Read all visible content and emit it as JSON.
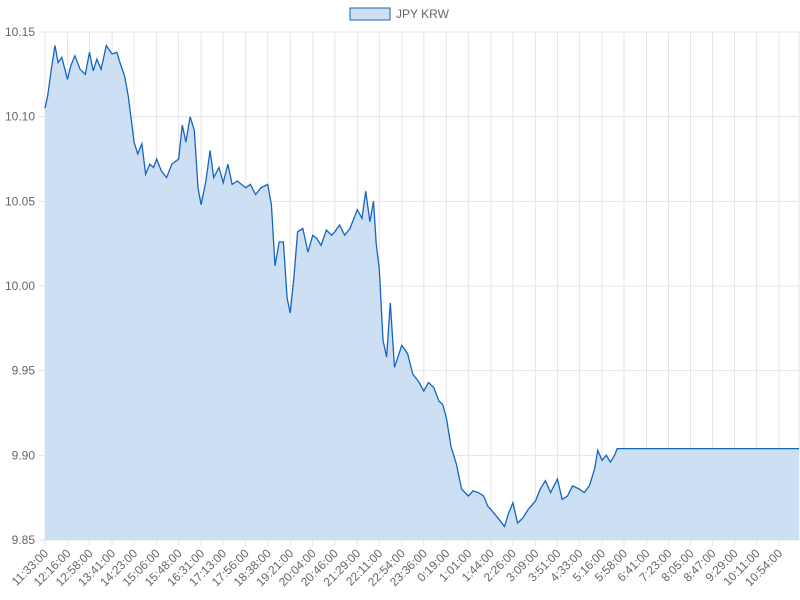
{
  "chart_data": {
    "type": "area",
    "legend": {
      "position": "top",
      "entries": [
        "JPY KRW"
      ]
    },
    "series": [
      {
        "name": "JPY KRW",
        "line_color": "#1565c0",
        "fill_color": "#cde0f3",
        "points": [
          [
            "11:33:00",
            10.105
          ],
          [
            "11:38:00",
            10.112
          ],
          [
            "11:45:00",
            10.128
          ],
          [
            "11:52:00",
            10.142
          ],
          [
            "11:58:00",
            10.132
          ],
          [
            "12:05:00",
            10.135
          ],
          [
            "12:16:00",
            10.122
          ],
          [
            "12:22:00",
            10.13
          ],
          [
            "12:30:00",
            10.136
          ],
          [
            "12:40:00",
            10.128
          ],
          [
            "12:50:00",
            10.125
          ],
          [
            "12:58:00",
            10.138
          ],
          [
            "13:05:00",
            10.127
          ],
          [
            "13:12:00",
            10.134
          ],
          [
            "13:20:00",
            10.128
          ],
          [
            "13:30:00",
            10.142
          ],
          [
            "13:41:00",
            10.137
          ],
          [
            "13:50:00",
            10.138
          ],
          [
            "13:58:00",
            10.13
          ],
          [
            "14:05:00",
            10.124
          ],
          [
            "14:12:00",
            10.112
          ],
          [
            "14:23:00",
            10.085
          ],
          [
            "14:30:00",
            10.078
          ],
          [
            "14:38:00",
            10.084
          ],
          [
            "14:45:00",
            10.066
          ],
          [
            "14:53:00",
            10.072
          ],
          [
            "15:00:00",
            10.07
          ],
          [
            "15:06:00",
            10.075
          ],
          [
            "15:15:00",
            10.068
          ],
          [
            "15:25:00",
            10.064
          ],
          [
            "15:35:00",
            10.072
          ],
          [
            "15:48:00",
            10.075
          ],
          [
            "15:55:00",
            10.095
          ],
          [
            "16:02:00",
            10.085
          ],
          [
            "16:10:00",
            10.1
          ],
          [
            "16:18:00",
            10.092
          ],
          [
            "16:25:00",
            10.058
          ],
          [
            "16:31:00",
            10.048
          ],
          [
            "16:40:00",
            10.062
          ],
          [
            "16:48:00",
            10.08
          ],
          [
            "16:55:00",
            10.064
          ],
          [
            "17:05:00",
            10.07
          ],
          [
            "17:13:00",
            10.061
          ],
          [
            "17:22:00",
            10.072
          ],
          [
            "17:30:00",
            10.06
          ],
          [
            "17:40:00",
            10.062
          ],
          [
            "17:56:00",
            10.058
          ],
          [
            "18:05:00",
            10.06
          ],
          [
            "18:15:00",
            10.054
          ],
          [
            "18:25:00",
            10.058
          ],
          [
            "18:38:00",
            10.06
          ],
          [
            "18:45:00",
            10.048
          ],
          [
            "18:52:00",
            10.012
          ],
          [
            "19:00:00",
            10.026
          ],
          [
            "19:08:00",
            10.026
          ],
          [
            "19:15:00",
            9.993
          ],
          [
            "19:21:00",
            9.984
          ],
          [
            "19:28:00",
            10.005
          ],
          [
            "19:35:00",
            10.032
          ],
          [
            "19:45:00",
            10.034
          ],
          [
            "19:55:00",
            10.02
          ],
          [
            "20:04:00",
            10.03
          ],
          [
            "20:12:00",
            10.028
          ],
          [
            "20:20:00",
            10.024
          ],
          [
            "20:30:00",
            10.033
          ],
          [
            "20:40:00",
            10.03
          ],
          [
            "20:46:00",
            10.032
          ],
          [
            "20:55:00",
            10.036
          ],
          [
            "21:05:00",
            10.03
          ],
          [
            "21:15:00",
            10.034
          ],
          [
            "21:29:00",
            10.045
          ],
          [
            "21:38:00",
            10.04
          ],
          [
            "21:45:00",
            10.056
          ],
          [
            "21:53:00",
            10.038
          ],
          [
            "22:00:00",
            10.05
          ],
          [
            "22:05:00",
            10.025
          ],
          [
            "22:11:00",
            10.01
          ],
          [
            "22:18:00",
            9.968
          ],
          [
            "22:25:00",
            9.958
          ],
          [
            "22:32:00",
            9.99
          ],
          [
            "22:40:00",
            9.952
          ],
          [
            "22:54:00",
            9.965
          ],
          [
            "23:05:00",
            9.96
          ],
          [
            "23:15:00",
            9.948
          ],
          [
            "23:25:00",
            9.944
          ],
          [
            "23:36:00",
            9.938
          ],
          [
            "23:45:00",
            9.943
          ],
          [
            "23:55:00",
            9.94
          ],
          [
            "0:05:00",
            9.932
          ],
          [
            "0:12:00",
            9.93
          ],
          [
            "0:19:00",
            9.922
          ],
          [
            "0:28:00",
            9.905
          ],
          [
            "0:38:00",
            9.895
          ],
          [
            "0:48:00",
            9.88
          ],
          [
            "1:01:00",
            9.876
          ],
          [
            "1:10:00",
            9.879
          ],
          [
            "1:20:00",
            9.878
          ],
          [
            "1:30:00",
            9.876
          ],
          [
            "1:38:00",
            9.87
          ],
          [
            "1:44:00",
            9.868
          ],
          [
            "1:52:00",
            9.865
          ],
          [
            "2:00:00",
            9.862
          ],
          [
            "2:10:00",
            9.858
          ],
          [
            "2:18:00",
            9.866
          ],
          [
            "2:26:00",
            9.872
          ],
          [
            "2:35:00",
            9.86
          ],
          [
            "2:45:00",
            9.863
          ],
          [
            "2:55:00",
            9.868
          ],
          [
            "3:09:00",
            9.873
          ],
          [
            "3:18:00",
            9.88
          ],
          [
            "3:28:00",
            9.885
          ],
          [
            "3:38:00",
            9.878
          ],
          [
            "3:51:00",
            9.886
          ],
          [
            "4:00:00",
            9.874
          ],
          [
            "4:10:00",
            9.876
          ],
          [
            "4:20:00",
            9.882
          ],
          [
            "4:33:00",
            9.88
          ],
          [
            "4:42:00",
            9.878
          ],
          [
            "4:52:00",
            9.882
          ],
          [
            "5:02:00",
            9.892
          ],
          [
            "5:08:00",
            9.903
          ],
          [
            "5:16:00",
            9.897
          ],
          [
            "5:24:00",
            9.9
          ],
          [
            "5:32:00",
            9.896
          ],
          [
            "5:40:00",
            9.9
          ],
          [
            "5:45:00",
            9.904
          ],
          [
            "5:58:00",
            9.904
          ],
          [
            "6:41:00",
            9.904
          ],
          [
            "7:23:00",
            9.904
          ],
          [
            "8:05:00",
            9.904
          ],
          [
            "8:47:00",
            9.904
          ],
          [
            "9:29:00",
            9.904
          ],
          [
            "10:11:00",
            9.904
          ],
          [
            "10:54:00",
            9.904
          ],
          [
            "11:32:00",
            9.904
          ]
        ]
      }
    ],
    "x_tick_labels": [
      "11:33:00",
      "12:16:00",
      "12:58:00",
      "13:41:00",
      "14:23:00",
      "15:06:00",
      "15:48:00",
      "16:31:00",
      "17:13:00",
      "17:56:00",
      "18:38:00",
      "19:21:00",
      "20:04:00",
      "20:46:00",
      "21:29:00",
      "22:11:00",
      "22:54:00",
      "23:36:00",
      "0:19:00",
      "1:01:00",
      "1:44:00",
      "2:26:00",
      "3:09:00",
      "3:51:00",
      "4:33:00",
      "5:16:00",
      "5:58:00",
      "6:41:00",
      "7:23:00",
      "8:05:00",
      "8:47:00",
      "9:29:00",
      "10:11:00",
      "10:54:00"
    ],
    "y_ticks": [
      9.85,
      9.9,
      9.95,
      10.0,
      10.05,
      10.1,
      10.15
    ],
    "y_tick_labels": [
      "9.85",
      "9.90",
      "9.95",
      "10.00",
      "10.05",
      "10.10",
      "10.15"
    ],
    "ylim": [
      9.85,
      10.15
    ],
    "grid": true,
    "colors": {
      "grid": "#e6e6e6",
      "tick_text": "#666666"
    }
  }
}
